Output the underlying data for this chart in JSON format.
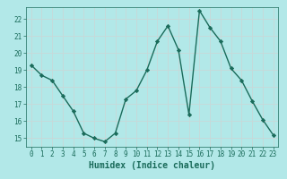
{
  "x": [
    0,
    1,
    2,
    3,
    4,
    5,
    6,
    7,
    8,
    9,
    10,
    11,
    12,
    13,
    14,
    15,
    16,
    17,
    18,
    19,
    20,
    21,
    22,
    23
  ],
  "y": [
    19.3,
    18.7,
    18.4,
    17.5,
    16.6,
    15.3,
    15.0,
    14.8,
    15.3,
    17.3,
    17.8,
    19.0,
    20.7,
    21.6,
    20.2,
    16.4,
    22.5,
    21.5,
    20.7,
    19.1,
    18.4,
    17.2,
    16.1,
    15.2
  ],
  "line_color": "#1a6b5a",
  "marker": "D",
  "markersize": 2.2,
  "linewidth": 1.0,
  "bg_color": "#b2e8e8",
  "grid_color": "#c8d8d8",
  "xlabel": "Humidex (Indice chaleur)",
  "ylabel": "",
  "title": "",
  "xlim": [
    -0.5,
    23.5
  ],
  "ylim": [
    14.5,
    22.7
  ],
  "yticks": [
    15,
    16,
    17,
    18,
    19,
    20,
    21,
    22
  ],
  "xticks": [
    0,
    1,
    2,
    3,
    4,
    5,
    6,
    7,
    8,
    9,
    10,
    11,
    12,
    13,
    14,
    15,
    16,
    17,
    18,
    19,
    20,
    21,
    22,
    23
  ],
  "tick_color": "#1a6b5a",
  "label_color": "#1a6b5a",
  "tick_fontsize": 5.5,
  "xlabel_fontsize": 7.0
}
